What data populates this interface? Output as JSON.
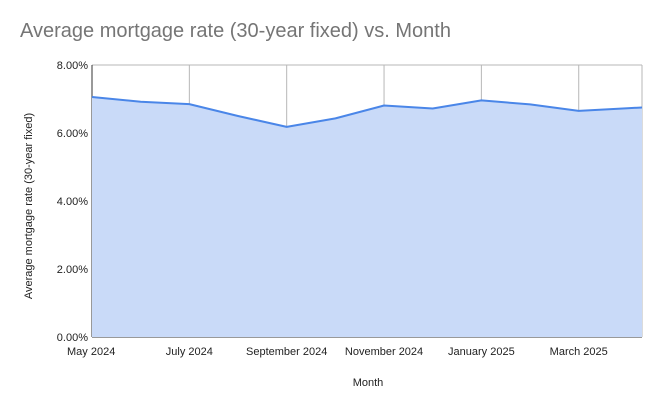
{
  "chart_data": {
    "type": "area",
    "title": "Average mortgage rate (30-year fixed) vs. Month",
    "xlabel": "Month",
    "ylabel": "Average mortgage rate (30-year fixed)",
    "x_tick_labels": [
      "May 2024",
      "July 2024",
      "September 2024",
      "November 2024",
      "January 2025",
      "March 2025"
    ],
    "x": [
      "2024-05",
      "2024-06",
      "2024-07",
      "2024-08",
      "2024-09",
      "2024-10",
      "2024-11",
      "2024-12",
      "2025-01",
      "2025-02",
      "2025-03",
      "2025-04"
    ],
    "series": [
      {
        "values": [
          7.06,
          6.92,
          6.85,
          6.5,
          6.18,
          6.43,
          6.81,
          6.72,
          6.96,
          6.84,
          6.65,
          6.73
        ]
      }
    ],
    "ylim": [
      0,
      8
    ],
    "y_ticks": [
      0,
      2,
      4,
      6,
      8
    ],
    "y_tick_labels": [
      "0.00%",
      "2.00%",
      "4.00%",
      "6.00%",
      "8.00%"
    ],
    "grid": true,
    "colors": {
      "line": "#4a86e8",
      "fill": "#c9daf8",
      "grid": "#b7b7b7",
      "title": "#757575"
    }
  }
}
